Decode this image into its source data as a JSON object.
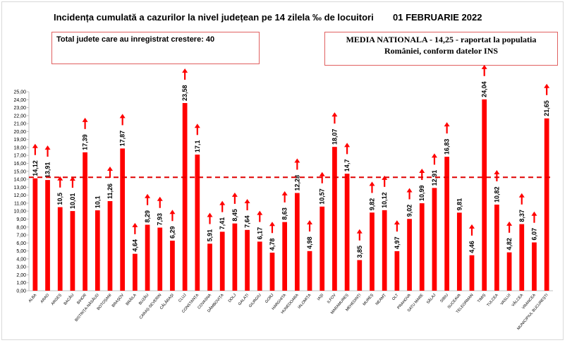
{
  "header": {
    "title": "Incidența cumulată a cazurilor la nivel județean pe 14 zilela ‰ de locuitori",
    "date": "01 FEBRUARIE 2022"
  },
  "info_left": "Total judete care au inregistrat crestere: 40",
  "info_right": {
    "line1": "MEDIA NATIONALA - 14,25 -  raportat la populatia",
    "line2": "României, conform datelor INS"
  },
  "colors": {
    "bar": "#ff0000",
    "arrow": "#ff0000",
    "average_line": "#e00000",
    "axis": "#bfbfbf"
  },
  "chart_data": {
    "type": "bar",
    "title": "Incidența cumulată a cazurilor la nivel județean pe 14 zilela ‰ de locuitori",
    "categories": [
      "ALBA",
      "ARAD",
      "ARGEȘ",
      "BACĂU",
      "BIHOR",
      "BISTRIȚA-NĂSĂUD",
      "BOTOȘANI",
      "BRAȘOV",
      "BRĂILA",
      "BUZĂU",
      "CARAȘ-SEVERIN",
      "CĂLĂRAȘI",
      "CLUJ",
      "CONSTANȚA",
      "COVASNA",
      "DÂMBOVIȚA",
      "DOLJ",
      "GALAȚI",
      "GIURGIU",
      "GORJ",
      "HARGHITA",
      "HUNEDOARA",
      "IALOMIȚA",
      "IAȘI",
      "ILFOV",
      "MARAMUREȘ",
      "MEHEDINȚI",
      "MUREȘ",
      "NEAMȚ",
      "OLT",
      "PRAHOVA",
      "SATU MARE",
      "SĂLAJ",
      "SIBIU",
      "SUCEAVA",
      "TELEORMAN",
      "TIMIȘ",
      "TULCEA",
      "VASLUI",
      "VÂLCEA",
      "VRANCEA",
      "MUNICIPIUL BUCUREȘTI"
    ],
    "values": [
      14.12,
      13.91,
      10.5,
      10.01,
      17.39,
      10.1,
      11.26,
      17.87,
      4.64,
      8.29,
      7.93,
      6.29,
      23.58,
      17.1,
      5.91,
      7.41,
      8.45,
      7.64,
      6.17,
      4.78,
      8.63,
      12.28,
      4.98,
      10.57,
      18.07,
      14.7,
      3.85,
      9.82,
      10.12,
      4.97,
      9.02,
      10.99,
      12.91,
      16.83,
      9.81,
      4.46,
      24.04,
      10.82,
      4.82,
      8.37,
      6.07,
      21.65
    ],
    "value_labels": [
      "14,12",
      "13,91",
      "10,5",
      "10,01",
      "17,39",
      "10,1",
      "11,26",
      "17,87",
      "4,64",
      "8,29",
      "7,93",
      "6,29",
      "23,58",
      "17,1",
      "5,91",
      "7,41",
      "8,45",
      "7,64",
      "6,17",
      "4,78",
      "8,63",
      "12,28",
      "4,98",
      "10,57",
      "18,07",
      "14,7",
      "3,85",
      "9,82",
      "10,12",
      "4,97",
      "9,02",
      "10,99",
      "12,91",
      "16,83",
      "9,81",
      "4,46",
      "24,04",
      "10,82",
      "4,82",
      "8,37",
      "6,07",
      "21,65"
    ],
    "increase": [
      true,
      true,
      true,
      true,
      true,
      false,
      true,
      true,
      true,
      true,
      true,
      true,
      true,
      true,
      true,
      true,
      true,
      true,
      true,
      true,
      true,
      true,
      true,
      true,
      true,
      true,
      true,
      true,
      true,
      true,
      true,
      true,
      true,
      true,
      false,
      true,
      true,
      true,
      true,
      true,
      true,
      true
    ],
    "ylim": [
      0,
      25
    ],
    "ytick_step": 1,
    "ytick_labels": [
      "0,00",
      "1,00",
      "2,00",
      "3,00",
      "4,00",
      "5,00",
      "6,00",
      "7,00",
      "8,00",
      "9,00",
      "10,00",
      "11,00",
      "12,00",
      "13,00",
      "14,00",
      "15,00",
      "16,00",
      "17,00",
      "18,00",
      "19,00",
      "20,00",
      "21,00",
      "22,00",
      "23,00",
      "24,00",
      "25,00"
    ],
    "average": 14.25,
    "grid": false,
    "legend": "none"
  }
}
